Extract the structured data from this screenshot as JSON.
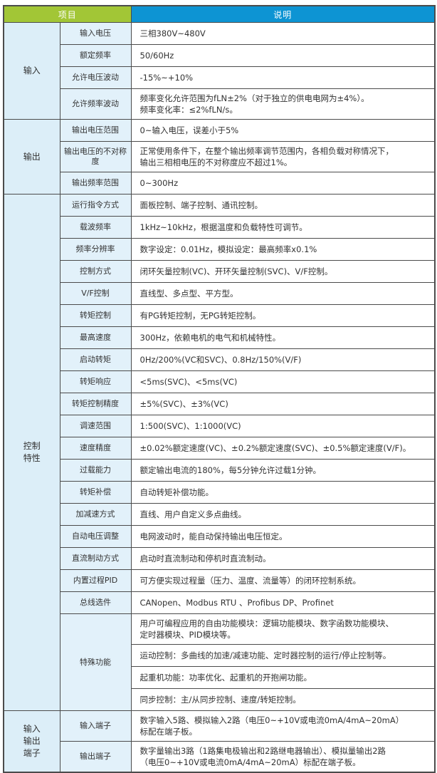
{
  "colors": {
    "header_green": "#a2c636",
    "header_blue": "#0d94d3",
    "cell_blue": "#dceef8",
    "cell_blue_light": "#e2f1fa",
    "border": "#4b4b4b",
    "text": "#323232"
  },
  "header": {
    "item_label": "项目",
    "desc_label": "说明"
  },
  "sections": [
    {
      "group": "输入",
      "group_lines": [
        "输入"
      ],
      "rows": [
        {
          "label": "输入电压",
          "lines": [
            "三相380V~480V"
          ]
        },
        {
          "label": "额定频率",
          "lines": [
            "50/60Hz"
          ]
        },
        {
          "label": "允许电压波动",
          "lines": [
            "-15%~+10%"
          ]
        },
        {
          "label": "允许频率波动",
          "lines": [
            "频率变化允许范围为fLN±2%（对于独立的供电电网为±4%）。",
            "频率变化率：≤2%fLN/s。"
          ]
        }
      ]
    },
    {
      "group": "输出",
      "group_lines": [
        "输出"
      ],
      "rows": [
        {
          "label": "输出电压范围",
          "lines": [
            "0~输入电压，误差小于5%"
          ]
        },
        {
          "label": "输出电压的不对称度",
          "lines": [
            "正常使用条件下，在整个输出频率调节范围内，各相负载对称情况下，",
            "输出三相相电压的不对称度应不超过1%。"
          ]
        },
        {
          "label": "输出频率范围",
          "lines": [
            "0~300Hz"
          ]
        }
      ]
    },
    {
      "group": "控制特性",
      "group_lines": [
        "控制",
        "特性"
      ],
      "rows": [
        {
          "label": "运行指令方式",
          "lines": [
            "面板控制、端子控制、通讯控制。"
          ]
        },
        {
          "label": "载波频率",
          "lines": [
            "1kHz~10kHz，根据温度和负载特性可调节。"
          ]
        },
        {
          "label": "频率分辨率",
          "lines": [
            "数字设定：0.01Hz，模拟设定：最高频率x0.1%"
          ]
        },
        {
          "label": "控制方式",
          "lines": [
            "闭环矢量控制(VC)、开环矢量控制(SVC)、V/F控制。"
          ]
        },
        {
          "label": "V/F控制",
          "lines": [
            "直线型、多点型、平方型。"
          ]
        },
        {
          "label": "转矩控制",
          "lines": [
            "有PG转矩控制，无PG转矩控制。"
          ]
        },
        {
          "label": "最高速度",
          "lines": [
            "300Hz，依赖电机的电气和机械特性。"
          ]
        },
        {
          "label": "启动转矩",
          "lines": [
            "0Hz/200%(VC和SVC)、0.8Hz/150%(V/F)"
          ]
        },
        {
          "label": "转矩响应",
          "lines": [
            "<5ms(SVC)、<5ms(VC)"
          ]
        },
        {
          "label": "转矩控制精度",
          "lines": [
            "±5%(SVC)、±3%(VC)"
          ]
        },
        {
          "label": "调速范围",
          "lines": [
            "1:500(SVC)、1:1000(VC)"
          ]
        },
        {
          "label": "速度精度",
          "lines": [
            "±0.02%额定速度(VC)、±0.2%额定速度(SVC)、±0.5%额定速度(V/F)。"
          ]
        },
        {
          "label": "过载能力",
          "lines": [
            "额定输出电流的180%，每5分钟允许过载1分钟。"
          ]
        },
        {
          "label": "转矩补偿",
          "lines": [
            "自动转矩补偿功能。"
          ]
        },
        {
          "label": "加减速方式",
          "lines": [
            "直线、用户自定义多点曲线。"
          ]
        },
        {
          "label": "自动电压调整",
          "lines": [
            "电网波动时，能自动保持输出电压恒定。"
          ]
        },
        {
          "label": "直流制动方式",
          "lines": [
            "启动时直流制动和停机时直流制动。"
          ]
        },
        {
          "label": "内置过程PID",
          "lines": [
            "可方便实现过程量（压力、温度、流量等）的闭环控制系统。"
          ]
        },
        {
          "label": "总线选件",
          "lines": [
            "CANopen、Modbus RTU 、Profibus DP、Profinet"
          ]
        },
        {
          "label": "特殊功能",
          "label_rowspan": 4,
          "lines": [
            "用户可编程应用的自由功能模块：逻辑功能模块、数字函数功能模块、",
            "定时器模块、PID模块等。"
          ]
        },
        {
          "label": null,
          "lines": [
            "运动控制：多曲线的加速/减速功能、定时器控制的运行/停止控制等。"
          ]
        },
        {
          "label": null,
          "lines": [
            "起重机功能：功率优化、起重机的开抱闸功能。"
          ]
        },
        {
          "label": null,
          "lines": [
            "同步控制：主/从同步控制、速度/转矩控制。"
          ]
        }
      ]
    },
    {
      "group": "输入输出端子",
      "group_lines": [
        "输入",
        "输出",
        "端子"
      ],
      "rows": [
        {
          "label": "输入端子",
          "lines": [
            "数字输入5路、模拟输入2路（电压0~+10V或电流0mA/4mA~20mA）",
            "标配在端子板。"
          ]
        },
        {
          "label": "输出端子",
          "lines": [
            "数字量输出3路（1路集电极输出和2路继电器输出）、模拟量输出2路",
            "（电压0~+10V或电流0mA/4mA~20mA）标配在端子板。"
          ]
        }
      ]
    }
  ]
}
